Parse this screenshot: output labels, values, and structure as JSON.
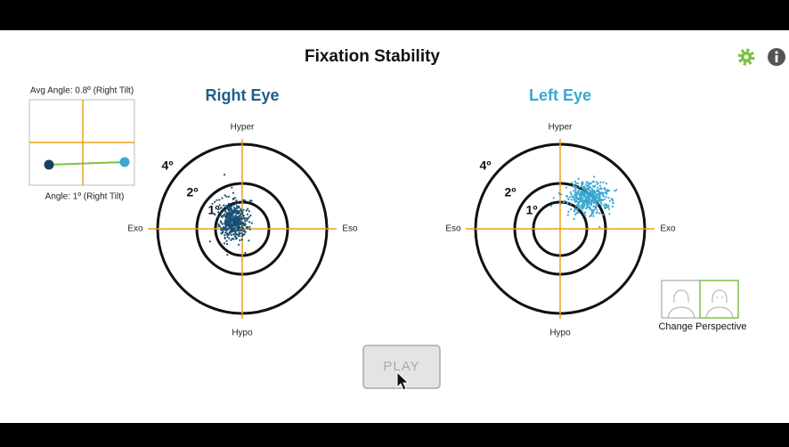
{
  "header": {
    "title": "Fixation Stability"
  },
  "inset": {
    "avg_angle": "Avg Angle: 0.8º (Right Tilt)",
    "angle": "Angle: 1º (Right Tilt)"
  },
  "right_eye": {
    "title": "Right Eye",
    "top": "Hyper",
    "bottom": "Hypo",
    "left": "Exo",
    "right": "Eso",
    "rings": [
      "4º",
      "2º",
      "1º"
    ]
  },
  "left_eye": {
    "title": "Left Eye",
    "top": "Hyper",
    "bottom": "Hypo",
    "left": "Eso",
    "right": "Exo",
    "rings": [
      "4º",
      "2º",
      "1º"
    ]
  },
  "perspective": {
    "label": "Change Perspective"
  },
  "play_button": {
    "label": "PLAY"
  }
}
